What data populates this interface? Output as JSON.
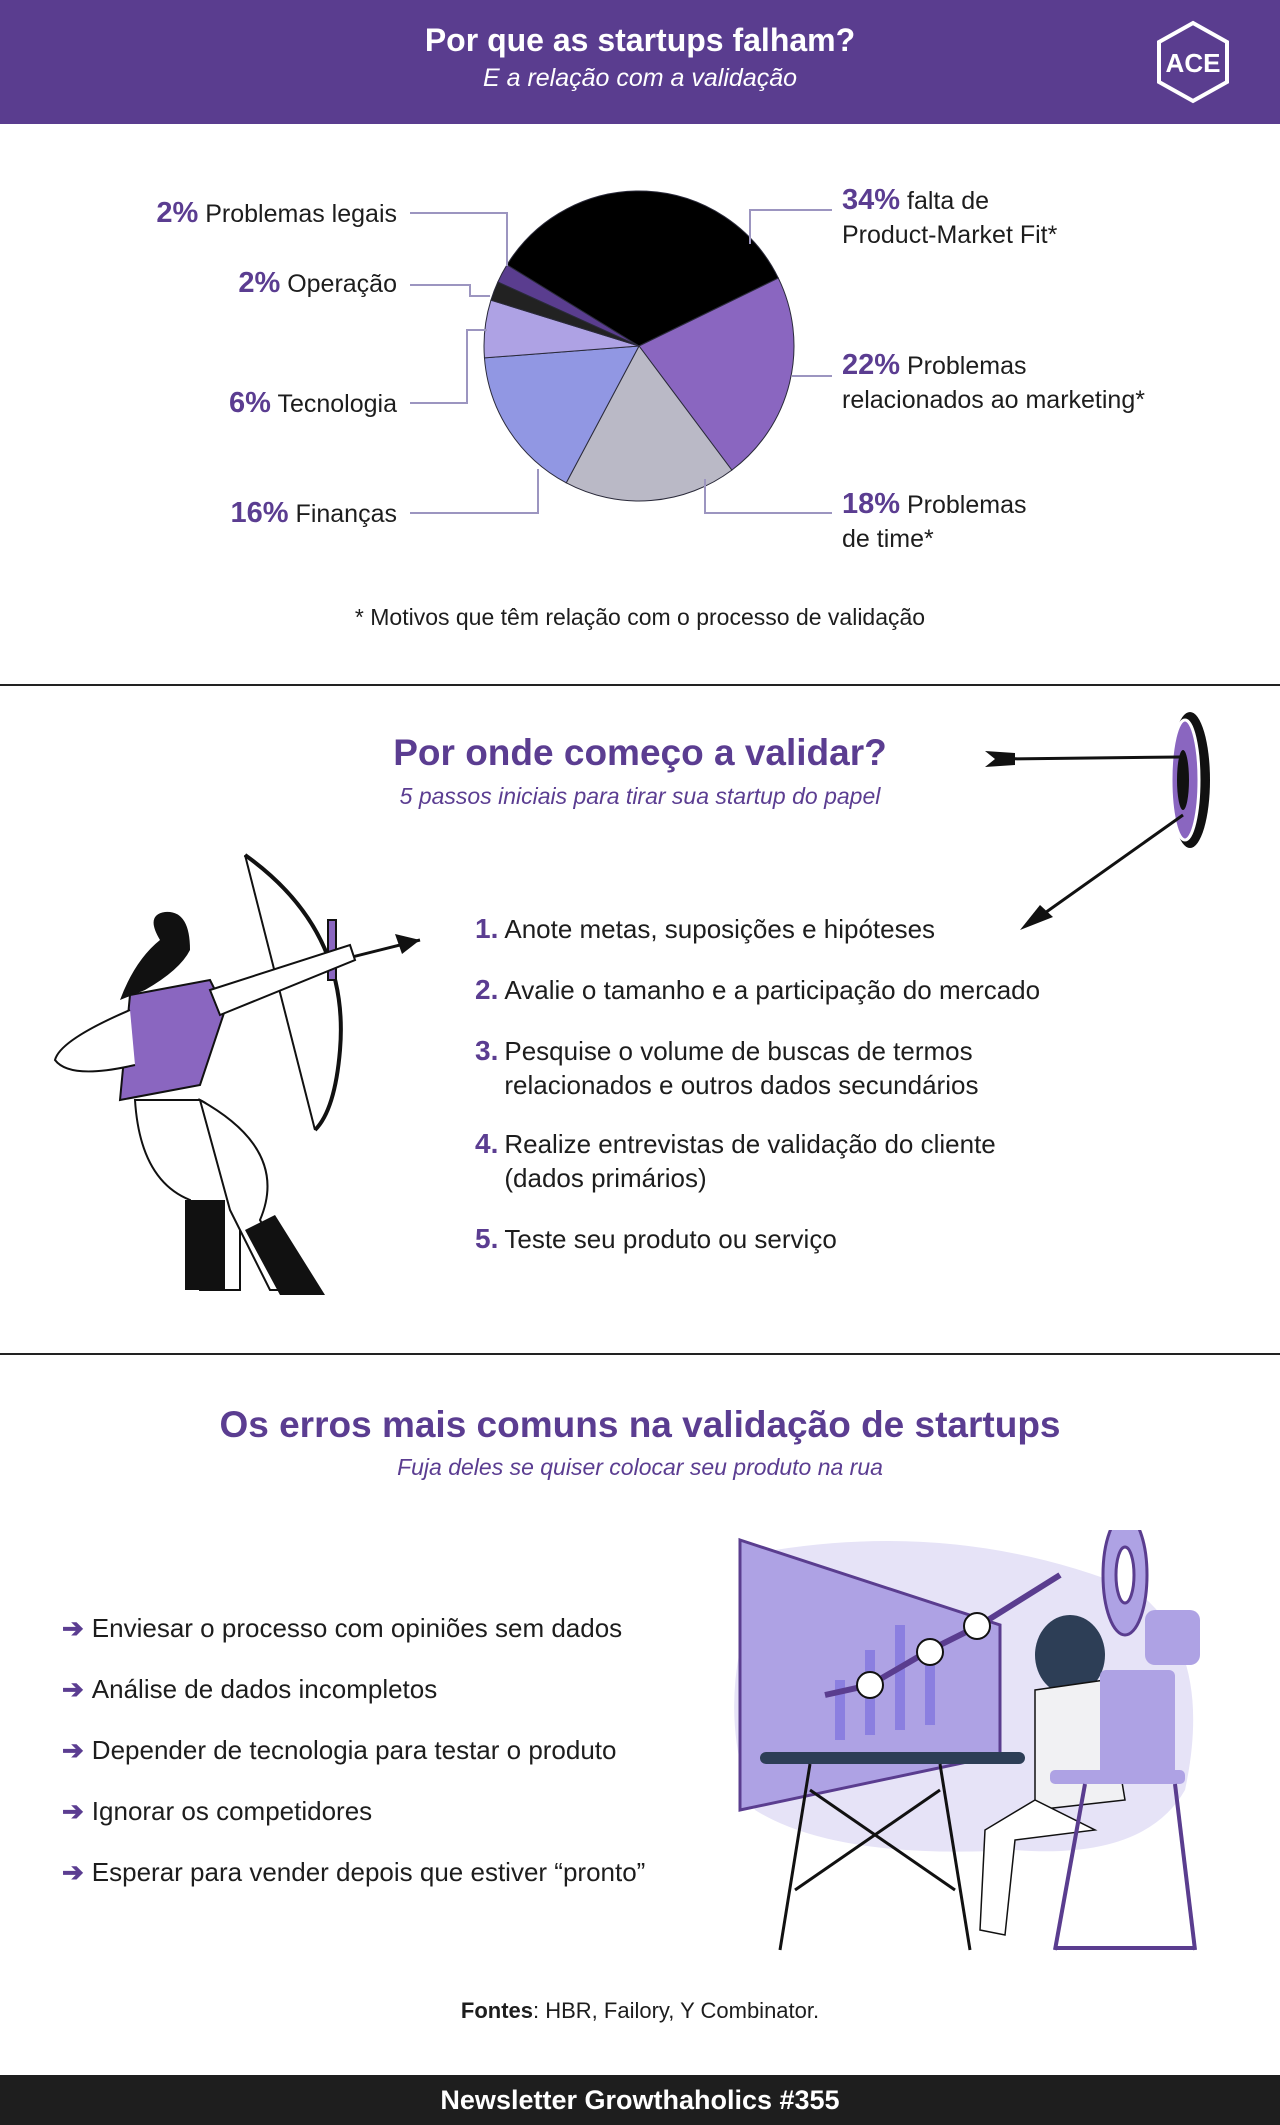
{
  "header": {
    "title": "Por que as startups falham?",
    "subtitle": "E a relação com a validação",
    "logo_text": "ACE"
  },
  "chart_data": {
    "type": "pie",
    "categories": [
      "falta de Product-Market Fit*",
      "Problemas relacionados ao marketing*",
      "Problemas de time*",
      "Finanças",
      "Tecnologia",
      "Operação",
      "Problemas legais"
    ],
    "values": [
      34,
      22,
      18,
      16,
      6,
      2,
      2
    ],
    "colors": [
      "#000000",
      "#8a66c0",
      "#bab9c6",
      "#9197e3",
      "#aea2e4",
      "#222222",
      "#5a3d8f"
    ],
    "labels": [
      {
        "pct": "34%",
        "text": "falta de",
        "text2": "Product-Market Fit*"
      },
      {
        "pct": "22%",
        "text": "Problemas",
        "text2": "relacionados ao marketing*"
      },
      {
        "pct": "18%",
        "text": "Problemas",
        "text2": "de time*"
      },
      {
        "pct": "16%",
        "text": "Finanças"
      },
      {
        "pct": "6%",
        "text": "Tecnologia"
      },
      {
        "pct": "2%",
        "text": "Operação"
      },
      {
        "pct": "2%",
        "text": "Problemas legais"
      }
    ],
    "footnote": "*  Motivos que têm relação com o processo de validação"
  },
  "steps_section": {
    "title": "Por onde começo a validar?",
    "subtitle": "5 passos iniciais para tirar sua startup do papel",
    "steps": [
      {
        "num": "1.",
        "text": "Anote metas, suposições e hipóteses"
      },
      {
        "num": "2.",
        "text": "Avalie o tamanho e a participação do mercado"
      },
      {
        "num": "3.",
        "text": "Pesquise o volume de buscas de termos",
        "text2": "relacionados e outros dados secundários"
      },
      {
        "num": "4.",
        "text": "Realize entrevistas de validação do cliente",
        "text2": "(dados primários)"
      },
      {
        "num": "5.",
        "text": "Teste seu produto ou serviço"
      }
    ]
  },
  "errors_section": {
    "title": "Os erros mais comuns na validação de startups",
    "subtitle": "Fuja deles se quiser colocar seu produto na rua",
    "items": [
      "Enviesar o processo com opiniões sem dados",
      "Análise de dados incompletos",
      "Depender de tecnologia para testar o produto",
      "Ignorar os competidores",
      "Esperar para vender depois que estiver “pronto”"
    ]
  },
  "sources": {
    "label": "Fontes",
    "text": ": HBR, Failory, Y Combinator."
  },
  "footer": {
    "text": "Newsletter Growthaholics #355"
  },
  "colors": {
    "brand": "#5a3d8f",
    "accent_text": "#5b3d91",
    "footer": "#1e1e1e"
  }
}
